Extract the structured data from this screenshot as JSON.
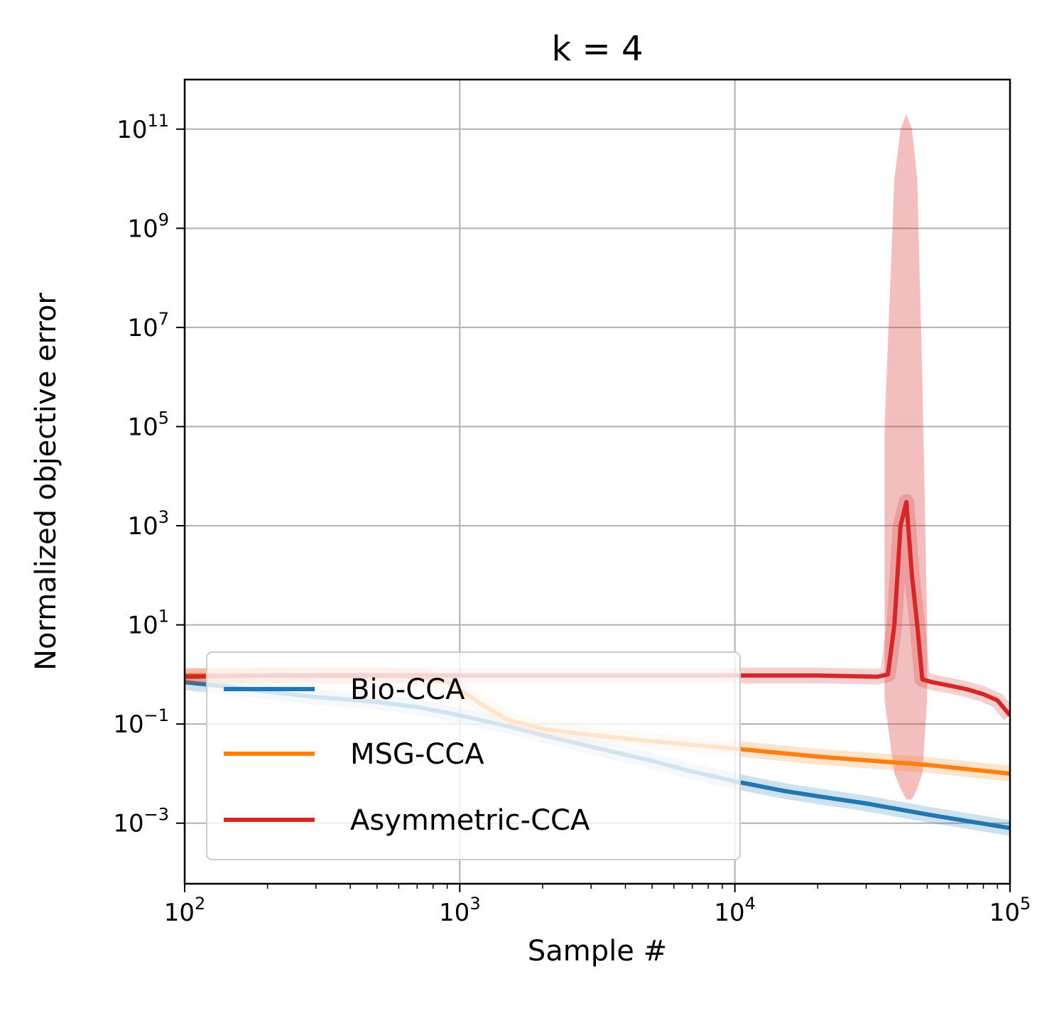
{
  "chart_data": {
    "type": "line",
    "title": "k = 4",
    "xlabel": "Sample #",
    "ylabel": "Normalized objective error",
    "xscale": "log",
    "yscale": "log",
    "xlim": [
      100,
      100000
    ],
    "ylim": [
      6e-05,
      1000000000000
    ],
    "x_ticks": [
      {
        "value": 100,
        "base": "10",
        "exp": "2"
      },
      {
        "value": 1000,
        "base": "10",
        "exp": "3"
      },
      {
        "value": 10000,
        "base": "10",
        "exp": "4"
      },
      {
        "value": 100000,
        "base": "10",
        "exp": "5"
      }
    ],
    "y_ticks": [
      {
        "value": 0.001,
        "base": "10",
        "exp": "−3"
      },
      {
        "value": 0.1,
        "base": "10",
        "exp": "−1"
      },
      {
        "value": 10,
        "base": "10",
        "exp": "1"
      },
      {
        "value": 1000,
        "base": "10",
        "exp": "3"
      },
      {
        "value": 100000,
        "base": "10",
        "exp": "5"
      },
      {
        "value": 10000000,
        "base": "10",
        "exp": "7"
      },
      {
        "value": 1000000000,
        "base": "10",
        "exp": "9"
      },
      {
        "value": 100000000000,
        "base": "10",
        "exp": "11"
      }
    ],
    "grid": true,
    "legend_position": "lower-left",
    "series": [
      {
        "name": "Bio-CCA",
        "color": "#1f77b4",
        "x": [
          100,
          150,
          200,
          300,
          500,
          700,
          1000,
          1500,
          2000,
          3000,
          5000,
          7000,
          10000,
          15000,
          20000,
          30000,
          50000,
          70000,
          100000
        ],
        "y": [
          0.7,
          0.55,
          0.45,
          0.35,
          0.28,
          0.22,
          0.15,
          0.09,
          0.06,
          0.035,
          0.018,
          0.011,
          0.007,
          0.0045,
          0.0035,
          0.0025,
          0.0015,
          0.0011,
          0.0008
        ]
      },
      {
        "name": "MSG-CCA",
        "color": "#ff7f0e",
        "x": [
          100,
          300,
          500,
          700,
          900,
          1000,
          1200,
          1500,
          2000,
          3000,
          5000,
          7000,
          10000,
          20000,
          50000,
          100000
        ],
        "y": [
          0.95,
          0.95,
          0.95,
          0.9,
          0.7,
          0.5,
          0.25,
          0.12,
          0.08,
          0.06,
          0.045,
          0.038,
          0.032,
          0.022,
          0.015,
          0.01
        ]
      },
      {
        "name": "Asymmetric-CCA",
        "color": "#d62728",
        "x": [
          100,
          200,
          500,
          1000,
          2000,
          5000,
          6000,
          20000,
          33000,
          36000,
          38000,
          40000,
          42000,
          44000,
          46000,
          48000,
          52000,
          60000,
          70000,
          80000,
          90000,
          100000
        ],
        "y": [
          0.9,
          0.95,
          0.95,
          0.95,
          0.95,
          0.95,
          0.95,
          0.95,
          0.9,
          1.0,
          10,
          1000,
          3000,
          100,
          10,
          0.8,
          0.7,
          0.6,
          0.5,
          0.4,
          0.3,
          0.15
        ]
      }
    ],
    "asymmetric_spike_band": {
      "x": [
        35000,
        38000,
        40000,
        42000,
        44000,
        46000,
        48000,
        50000
      ],
      "upper": [
        100000,
        10000000000,
        100000000000,
        200000000000,
        100000000000,
        10000000000,
        1000000,
        10
      ],
      "lower": [
        0.3,
        0.01,
        0.005,
        0.003,
        0.003,
        0.005,
        0.01,
        0.3
      ]
    }
  }
}
